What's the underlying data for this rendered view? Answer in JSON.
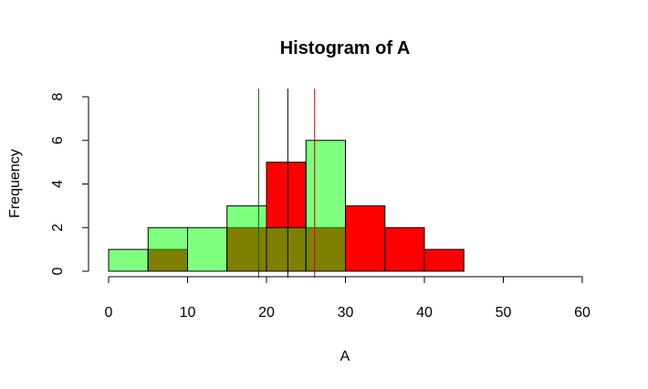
{
  "chart_data": {
    "type": "bar",
    "title": "Histogram of A",
    "xlabel": "A",
    "ylabel": "Frequency",
    "xlim": [
      0,
      60
    ],
    "ylim": [
      0,
      8
    ],
    "x_ticks": [
      0,
      10,
      20,
      30,
      40,
      50,
      60
    ],
    "y_ticks": [
      0,
      2,
      4,
      6,
      8
    ],
    "bin_width": 5,
    "series": [
      {
        "color": "#ff0000",
        "bins": [
          {
            "x0": 5,
            "x1": 10,
            "count": 1
          },
          {
            "x0": 15,
            "x1": 20,
            "count": 2
          },
          {
            "x0": 20,
            "x1": 25,
            "count": 5
          },
          {
            "x0": 25,
            "x1": 30,
            "count": 2
          },
          {
            "x0": 30,
            "x1": 35,
            "count": 3
          },
          {
            "x0": 35,
            "x1": 40,
            "count": 2
          },
          {
            "x0": 40,
            "x1": 45,
            "count": 1
          }
        ]
      },
      {
        "color": "#00ff00",
        "opacity": 0.5,
        "bins": [
          {
            "x0": 0,
            "x1": 5,
            "count": 1
          },
          {
            "x0": 5,
            "x1": 10,
            "count": 2
          },
          {
            "x0": 10,
            "x1": 15,
            "count": 2
          },
          {
            "x0": 15,
            "x1": 20,
            "count": 3
          },
          {
            "x0": 20,
            "x1": 25,
            "count": 2
          },
          {
            "x0": 25,
            "x1": 30,
            "count": 6
          }
        ]
      }
    ],
    "vlines": [
      {
        "x": 19,
        "color": "#006400"
      },
      {
        "x": 22.7,
        "color": "#000000"
      },
      {
        "x": 26.1,
        "color": "#cc0000"
      }
    ]
  }
}
